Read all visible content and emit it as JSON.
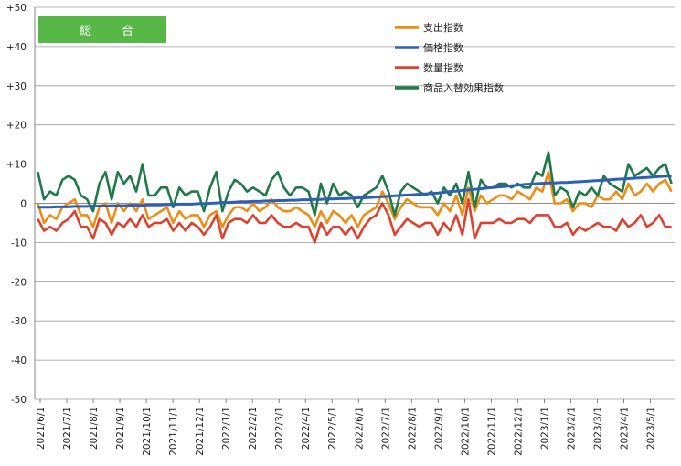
{
  "chart_data": {
    "type": "line",
    "title": "総　合",
    "title_box_color": "#57B848",
    "ylim": [
      -50,
      50
    ],
    "yticks": [
      "+50",
      "+40",
      "+30",
      "+20",
      "+10",
      "0",
      "-10",
      "-20",
      "-30",
      "-40",
      "-50"
    ],
    "grid": true,
    "legend_position": "top-right",
    "x_count": 104,
    "x_tick_labels": [
      "2021/6/1",
      "2021/7/1",
      "2021/8/1",
      "2021/9/1",
      "2021/10/1",
      "2021/11/1",
      "2021/12/1",
      "2022/1/1",
      "2022/2/1",
      "2022/3/1",
      "2022/4/1",
      "2022/5/1",
      "2022/6/1",
      "2022/7/1",
      "2022/8/1",
      "2022/9/1",
      "2022/10/1",
      "2022/11/1",
      "2022/12/1",
      "2023/1/1",
      "2023/2/1",
      "2023/3/1",
      "2023/4/1",
      "2023/5/1"
    ],
    "series": [
      {
        "name": "支出指数",
        "color": "#F08C14",
        "values": [
          0,
          -5,
          -3,
          -4,
          -1,
          0,
          1,
          -3,
          -3,
          -6,
          -1,
          0,
          -5,
          0,
          -2,
          0,
          -2,
          1,
          -4,
          -3,
          -2,
          -1,
          -5,
          -2,
          -4,
          -3,
          -3,
          -6,
          -3,
          -2,
          -6,
          -3,
          -1,
          -1,
          -2,
          0,
          -2,
          -1,
          1,
          -1,
          -2,
          -2,
          -1,
          -2,
          -3,
          -6,
          -2,
          -5,
          -2,
          -3,
          -5,
          -3,
          -6,
          -3,
          -2,
          -1,
          3,
          0,
          -4,
          -1,
          1,
          0,
          -1,
          -1,
          -1,
          -3,
          0,
          -2,
          2,
          -3,
          4,
          -2,
          2,
          0,
          1,
          2,
          2,
          1,
          3,
          2,
          1,
          4,
          3,
          8,
          0,
          0,
          1,
          -2,
          0,
          0,
          -1,
          2,
          1,
          1,
          3,
          1,
          5,
          2,
          3,
          5,
          3,
          5,
          6,
          3
        ]
      },
      {
        "name": "価格指数",
        "color": "#2E5FB8",
        "values": [
          -1,
          -1,
          -1,
          -0.9,
          -0.9,
          -0.9,
          -0.8,
          -0.8,
          -0.8,
          -0.7,
          -0.7,
          -0.7,
          -0.6,
          -0.6,
          -0.6,
          -0.5,
          -0.5,
          -0.5,
          -0.4,
          -0.4,
          -0.4,
          -0.3,
          -0.3,
          -0.2,
          -0.2,
          -0.2,
          -0.1,
          -0.1,
          0,
          0.1,
          0.2,
          0.2,
          0.3,
          0.4,
          0.4,
          0.5,
          0.5,
          0.6,
          0.6,
          0.7,
          0.7,
          0.8,
          0.8,
          0.9,
          0.9,
          1,
          1,
          1.1,
          1.1,
          1.2,
          1.2,
          1.3,
          1.4,
          1.4,
          1.5,
          1.6,
          1.7,
          1.8,
          1.9,
          2,
          2.1,
          2.2,
          2.3,
          2.4,
          2.5,
          2.6,
          2.8,
          3,
          3.1,
          3.3,
          3.4,
          3.6,
          3.7,
          3.9,
          4,
          4.2,
          4.3,
          4.5,
          4.6,
          4.8,
          4.9,
          5,
          5.1,
          5.2,
          5.2,
          5.3,
          5.3,
          5.4,
          5.5,
          5.6,
          5.7,
          5.8,
          5.9,
          6,
          6.1,
          6.2,
          6.3,
          6.4,
          6.5,
          6.6,
          6.7,
          6.8,
          6.9,
          7
        ]
      },
      {
        "name": "数量指数",
        "color": "#E0412E",
        "values": [
          -4,
          -7,
          -6,
          -7,
          -5,
          -4,
          -2,
          -6,
          -6,
          -9,
          -4,
          -5,
          -8,
          -5,
          -6,
          -4,
          -6,
          -3,
          -6,
          -5,
          -5,
          -4,
          -7,
          -5,
          -7,
          -5,
          -6,
          -8,
          -6,
          -3,
          -9,
          -5,
          -4,
          -4,
          -5,
          -3,
          -5,
          -5,
          -3,
          -5,
          -6,
          -6,
          -5,
          -6,
          -6,
          -10,
          -5,
          -8,
          -6,
          -6,
          -8,
          -6,
          -9,
          -6,
          -4,
          -3,
          0,
          -3,
          -8,
          -6,
          -4,
          -5,
          -6,
          -5,
          -5,
          -8,
          -5,
          -7,
          -3,
          -8,
          1,
          -9,
          -5,
          -5,
          -5,
          -4,
          -5,
          -5,
          -4,
          -4,
          -5,
          -3,
          -3,
          -3,
          -6,
          -6,
          -5,
          -8,
          -6,
          -7,
          -6,
          -5,
          -6,
          -6,
          -7,
          -4,
          -6,
          -5,
          -3,
          -6,
          -5,
          -3,
          -6,
          -6
        ]
      },
      {
        "name": "商品入替効果指数",
        "color": "#1E7A48",
        "values": [
          8,
          1,
          3,
          2,
          6,
          7,
          6,
          2,
          1,
          -2,
          5,
          8,
          1,
          8,
          5,
          7,
          3,
          10,
          2,
          2,
          4,
          4,
          -1,
          4,
          2,
          3,
          3,
          -2,
          4,
          8,
          -2,
          3,
          6,
          5,
          3,
          4,
          3,
          2,
          6,
          8,
          4,
          2,
          4,
          4,
          3,
          -3,
          5,
          0,
          5,
          2,
          3,
          2,
          -1,
          2,
          3,
          4,
          7,
          3,
          -3,
          3,
          5,
          4,
          3,
          2,
          3,
          0,
          4,
          2,
          5,
          0,
          8,
          -1,
          6,
          4,
          4,
          5,
          5,
          4,
          5,
          4,
          4,
          8,
          7,
          13,
          2,
          4,
          3,
          -1,
          3,
          2,
          4,
          2,
          7,
          5,
          4,
          3,
          10,
          7,
          8,
          9,
          7,
          9,
          10,
          5
        ]
      }
    ]
  }
}
